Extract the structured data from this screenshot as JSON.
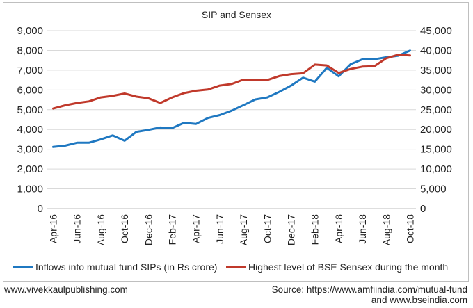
{
  "chart_data": {
    "type": "line",
    "title": "SIP and Sensex",
    "x": [
      "Apr-16",
      "May-16",
      "Jun-16",
      "Jul-16",
      "Aug-16",
      "Sep-16",
      "Oct-16",
      "Nov-16",
      "Dec-16",
      "Jan-17",
      "Feb-17",
      "Mar-17",
      "Apr-17",
      "May-17",
      "Jun-17",
      "Jul-17",
      "Aug-17",
      "Sep-17",
      "Oct-17",
      "Nov-17",
      "Dec-17",
      "Jan-18",
      "Feb-18",
      "Mar-18",
      "Apr-18",
      "May-18",
      "Jun-18",
      "Jul-18",
      "Aug-18",
      "Sep-18",
      "Oct-18"
    ],
    "x_tick_labels": [
      "Apr-16",
      "Jun-16",
      "Aug-16",
      "Oct-16",
      "Dec-16",
      "Feb-17",
      "Apr-17",
      "Jun-17",
      "Aug-17",
      "Oct-17",
      "Dec-17",
      "Feb-18",
      "Apr-18",
      "Jun-18",
      "Aug-18",
      "Oct-18"
    ],
    "y_left": {
      "min": 0,
      "max": 9000,
      "step": 1000,
      "tick_labels": [
        "0",
        "1,000",
        "2,000",
        "3,000",
        "4,000",
        "5,000",
        "6,000",
        "7,000",
        "8,000",
        "9,000"
      ]
    },
    "y_right": {
      "min": 0,
      "max": 45000,
      "step": 5000,
      "tick_labels": [
        "0",
        "5,000",
        "10,000",
        "15,000",
        "20,000",
        "25,000",
        "30,000",
        "35,000",
        "40,000",
        "45,000"
      ]
    },
    "grid": true,
    "legend_position": "bottom",
    "series": [
      {
        "name": "Inflows into mutual fund SIPs (in Rs crore)",
        "axis": "left",
        "color": "#1f78c1",
        "values": [
          3120,
          3180,
          3330,
          3330,
          3500,
          3700,
          3430,
          3880,
          3980,
          4100,
          4070,
          4340,
          4280,
          4580,
          4730,
          4950,
          5230,
          5520,
          5620,
          5900,
          6220,
          6620,
          6420,
          7120,
          6690,
          7300,
          7550,
          7550,
          7650,
          7730,
          7990
        ]
      },
      {
        "name": "Highest level of BSE Sensex during the month",
        "axis": "right",
        "color": "#c0392b",
        "values": [
          25300,
          26100,
          26700,
          27100,
          28100,
          28500,
          29100,
          28300,
          27900,
          26700,
          28100,
          29200,
          29800,
          30100,
          31100,
          31500,
          32600,
          32600,
          32500,
          33500,
          34000,
          34200,
          36400,
          36200,
          34300,
          35300,
          35900,
          36000,
          38000,
          38900,
          38700
        ]
      }
    ]
  },
  "footer": {
    "left": "www.vivekkaulpublishing.com",
    "right_line1": "Source: https://www.amfiindia.com/mutual-fund",
    "right_line2": "and www.bseindia.com"
  }
}
